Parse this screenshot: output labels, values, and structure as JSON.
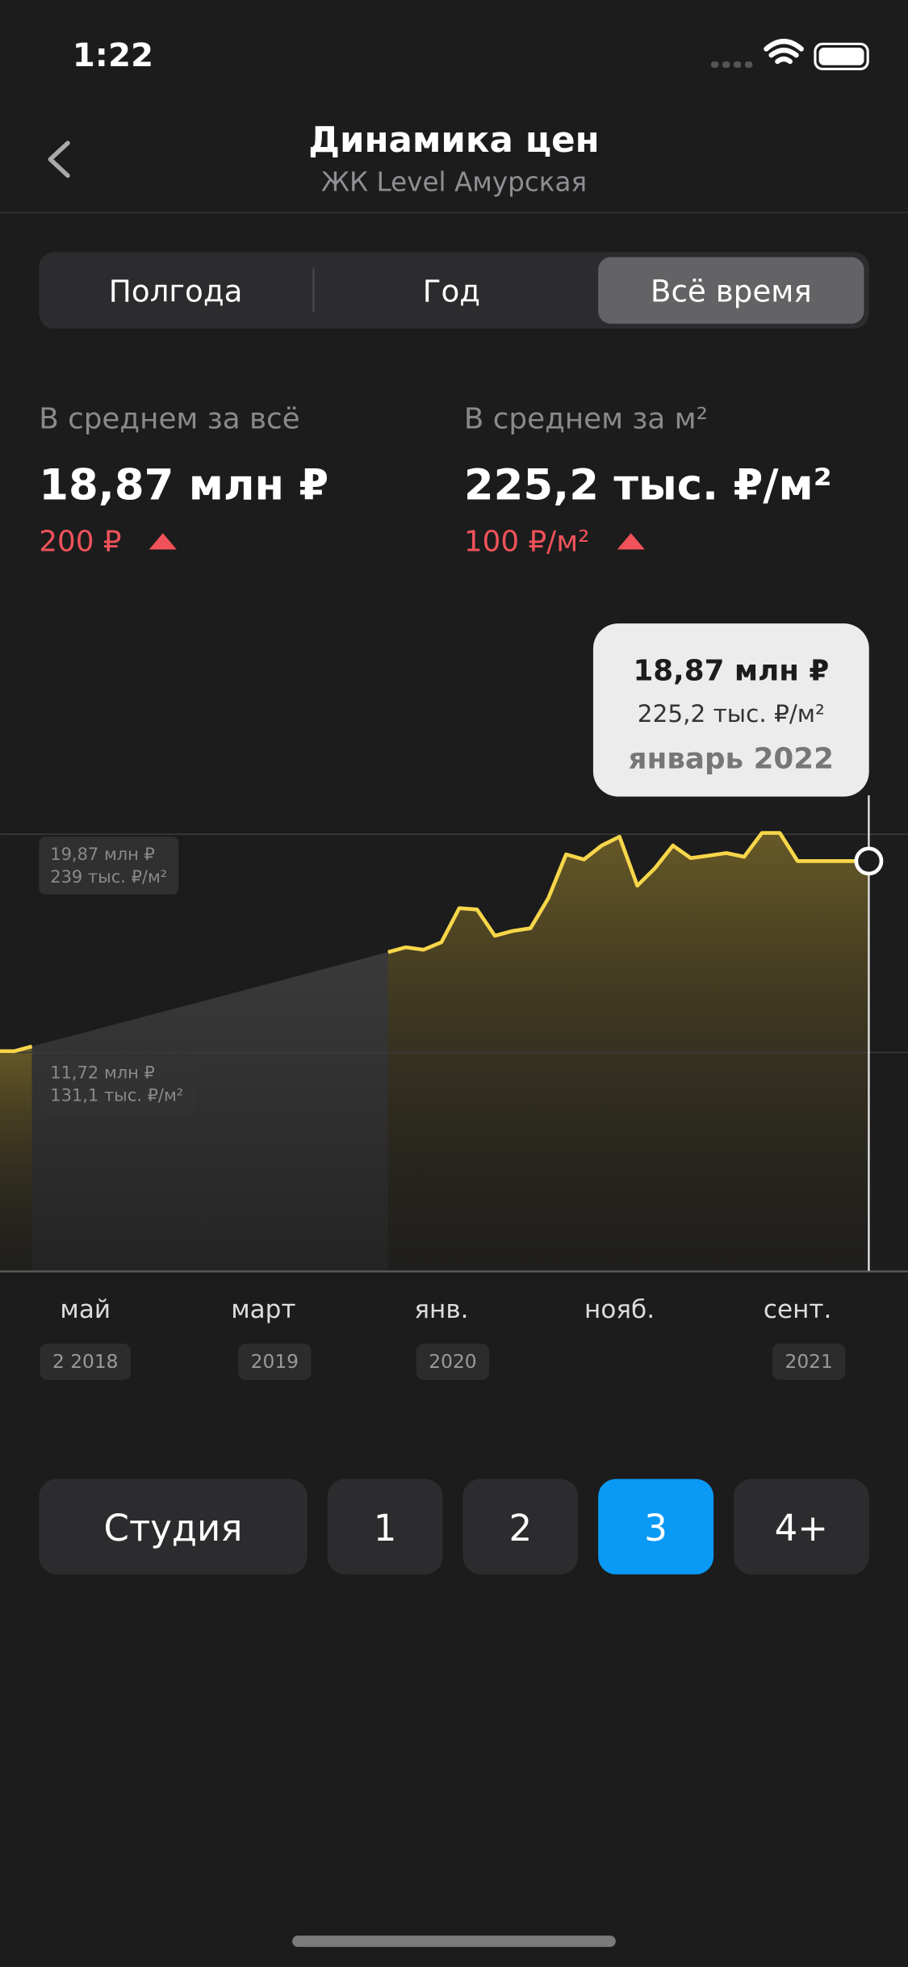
{
  "status_bar": {
    "time": "1:22"
  },
  "header": {
    "title": "Динамика цен",
    "subtitle": "ЖК Level Амурская"
  },
  "periods": {
    "options": [
      "Полгода",
      "Год",
      "Всё время"
    ],
    "selected": 2
  },
  "stats": [
    {
      "label": "В среднем за всё",
      "value": "18,87 млн ₽",
      "change": "200 ₽"
    },
    {
      "label": "В среднем за м²",
      "value": "225,2 тыс. ₽/м²",
      "change": "100 ₽/м²"
    }
  ],
  "chart_data": {
    "type": "line",
    "categories": [
      null,
      null,
      null,
      null,
      null,
      "май",
      null,
      null,
      null,
      null,
      null,
      null,
      null,
      null,
      null,
      "март",
      null,
      null,
      null,
      null,
      null,
      null,
      null,
      null,
      null,
      "янв.",
      null,
      null,
      null,
      null,
      null,
      null,
      null,
      null,
      null,
      "нояб.",
      null,
      null,
      null,
      null,
      null,
      null,
      null,
      null,
      null,
      "сент.",
      null,
      null,
      null,
      null
    ],
    "values": [
      11.77,
      11.77,
      11.95,
      null,
      null,
      null,
      null,
      null,
      null,
      null,
      null,
      null,
      null,
      null,
      null,
      null,
      null,
      null,
      null,
      null,
      null,
      null,
      15.47,
      15.65,
      15.56,
      15.84,
      17.11,
      17.06,
      16.08,
      16.26,
      16.36,
      17.48,
      19.12,
      18.93,
      19.45,
      19.78,
      17.95,
      18.61,
      19.45,
      18.98,
      19.07,
      19.17,
      19.03,
      19.92,
      19.92,
      18.87,
      18.87,
      18.87,
      18.87,
      18.87
    ],
    "color": "#f7d64a",
    "ylim": [
      3.57,
      28.07
    ],
    "yticks": [
      {
        "value": 11.72,
        "label": "11,72 млн ₽"
      },
      {
        "value": 19.87,
        "label": "19,87 млн ₽"
      }
    ],
    "y2lim": [
      23.2,
      347.5
    ],
    "y2ticks": [
      {
        "value": 131.1,
        "label": "131,1 тыс. ₽/м²"
      },
      {
        "value": 239,
        "label": "239 тыс. ₽/м²"
      }
    ],
    "grid": true,
    "tooltip": {
      "price": "18,87 млн ₽",
      "price_per_m2": "225,2 тыс. ₽/м²",
      "date": "январь 2022"
    }
  },
  "year_labels": [
    "2 2018",
    "2019",
    "2020",
    "2021"
  ],
  "rooms": {
    "options": [
      "Студия",
      "1",
      "2",
      "3",
      "4+"
    ],
    "selected": 3
  }
}
